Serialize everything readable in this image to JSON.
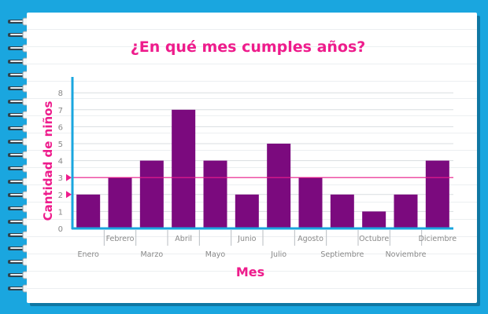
{
  "colors": {
    "background": "#1aa6df",
    "bar": "#7b0a7e",
    "title": "#ee1c8c",
    "axis": "#1aa6df",
    "tick_text": "#888888",
    "reference_line": "#ee1c8c"
  },
  "chart_data": {
    "type": "bar",
    "title": "¿En qué mes cumples años?",
    "xlabel": "Mes",
    "ylabel": "Cantidad de niños",
    "categories": [
      "Enero",
      "Febrero",
      "Marzo",
      "Abril",
      "Mayo",
      "Junio",
      "Julio",
      "Agosto",
      "Septiembre",
      "Octubre",
      "Noviembre",
      "Diciembre"
    ],
    "values": [
      2,
      3,
      4,
      7,
      4,
      2,
      5,
      3,
      2,
      1,
      2,
      4
    ],
    "ylim": [
      0,
      8
    ],
    "yticks": [
      0,
      1,
      2,
      3,
      4,
      5,
      6,
      7,
      8
    ],
    "grid": true,
    "reference_lines": [
      3
    ],
    "axis_markers": [
      2,
      3
    ]
  }
}
